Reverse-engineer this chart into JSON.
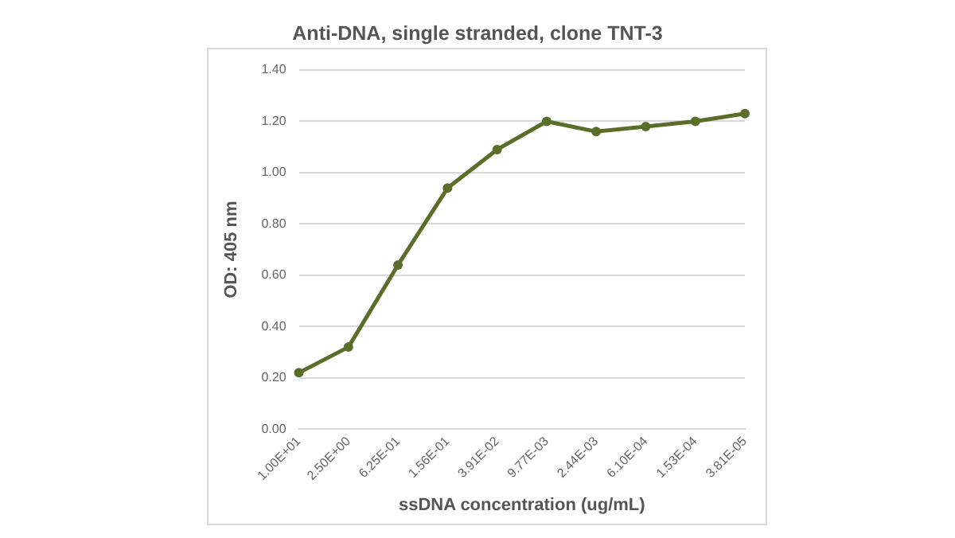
{
  "chart_data": {
    "type": "line",
    "title": "Anti-DNA, single stranded, clone TNT-3",
    "xlabel": "ssDNA concentration (ug/mL)",
    "ylabel": "OD: 405 nm",
    "categories": [
      "1.00E+01",
      "2.50E+00",
      "6.25E-01",
      "1.56E-01",
      "3.91E-02",
      "9.77E-03",
      "2.44E-03",
      "6.10E-04",
      "1.53E-04",
      "3.81E-05"
    ],
    "series": [
      {
        "color": "#5a6e2a",
        "values": [
          0.22,
          0.32,
          0.64,
          0.94,
          1.09,
          1.2,
          1.16,
          1.18,
          1.2,
          1.23
        ]
      }
    ],
    "ylim": [
      0,
      1.4
    ],
    "yticks": [
      {
        "value": 0,
        "label": "0.00"
      },
      {
        "value": 0.2,
        "label": "0.20"
      },
      {
        "value": 0.4,
        "label": "0.40"
      },
      {
        "value": 0.6,
        "label": "0.60"
      },
      {
        "value": 0.8,
        "label": "0.80"
      },
      {
        "value": 1,
        "label": "1.00"
      },
      {
        "value": 1.2,
        "label": "1.20"
      },
      {
        "value": 1.4,
        "label": "1.40"
      }
    ],
    "grid": "y",
    "legend": false,
    "marker": "circle",
    "line_style": "solid"
  }
}
